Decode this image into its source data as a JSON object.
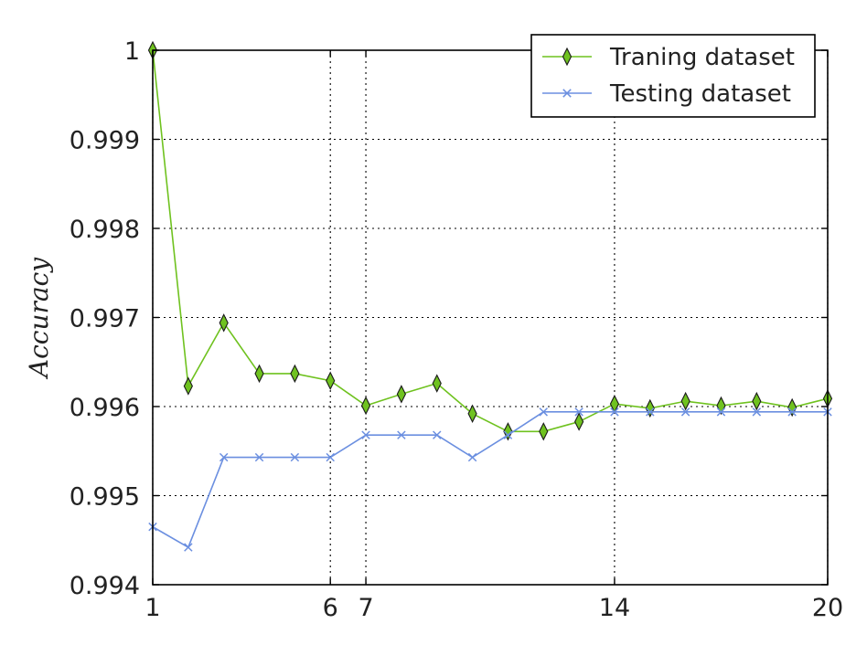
{
  "chart_data": {
    "type": "line",
    "title": "",
    "xlabel": "",
    "ylabel": "Accuracy",
    "xlim": [
      1,
      20
    ],
    "ylim": [
      0.994,
      1.0
    ],
    "x_ticks": [
      1,
      6,
      7,
      14,
      20
    ],
    "x_tick_labels": [
      "1",
      "6",
      "7",
      "14",
      "20"
    ],
    "y_ticks": [
      0.994,
      0.995,
      0.996,
      0.997,
      0.998,
      0.999,
      1.0
    ],
    "y_tick_labels": [
      "0.994",
      "0.995",
      "0.996",
      "0.997",
      "0.998",
      "0.999",
      "1"
    ],
    "grid": "dotted at ticks",
    "legend_position": "top-right",
    "x": [
      1,
      2,
      3,
      4,
      5,
      6,
      7,
      8,
      9,
      10,
      11,
      12,
      13,
      14,
      15,
      16,
      17,
      18,
      19,
      20
    ],
    "series": [
      {
        "name": "Traning dataset",
        "color": "#6fc21f",
        "marker": "thin-diamond",
        "values": [
          1.0,
          0.99623,
          0.99694,
          0.99637,
          0.99637,
          0.99629,
          0.99601,
          0.99614,
          0.99626,
          0.99592,
          0.99572,
          0.99572,
          0.99583,
          0.99603,
          0.99598,
          0.99606,
          0.99601,
          0.99606,
          0.99599,
          0.99609
        ]
      },
      {
        "name": "Testing dataset",
        "color": "#6b8fe0",
        "marker": "x",
        "values": [
          0.99465,
          0.99442,
          0.99543,
          0.99543,
          0.99543,
          0.99543,
          0.99568,
          0.99568,
          0.99568,
          0.99543,
          0.99568,
          0.99594,
          0.99594,
          0.99594,
          0.99594,
          0.99594,
          0.99594,
          0.99594,
          0.99594,
          0.99594
        ]
      }
    ]
  }
}
